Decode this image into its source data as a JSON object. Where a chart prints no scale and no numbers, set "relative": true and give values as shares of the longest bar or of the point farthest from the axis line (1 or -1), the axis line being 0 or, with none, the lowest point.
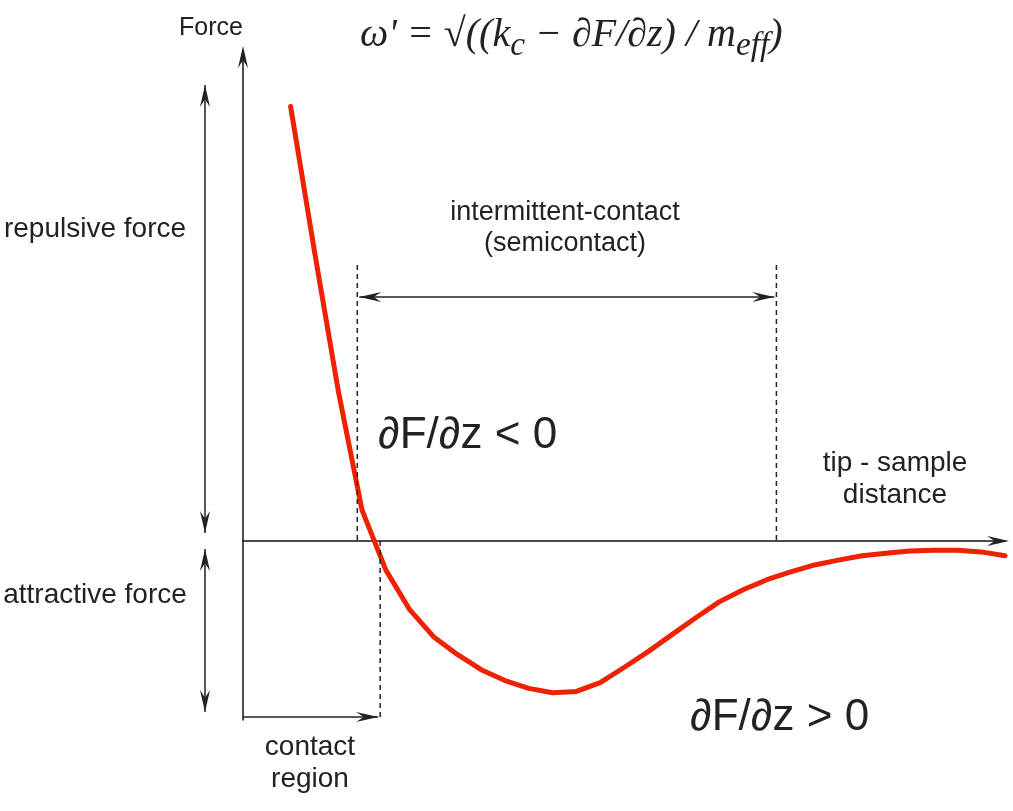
{
  "chart_data": {
    "type": "line",
    "relative": true,
    "xlabel": "tip - sample distance",
    "ylabel": "Force",
    "categories": [
      null,
      null,
      null,
      null,
      null,
      null,
      null,
      null,
      null,
      null,
      null,
      null,
      null,
      null,
      null,
      null,
      null,
      null,
      null,
      null,
      null,
      null,
      null,
      null,
      null,
      null,
      null,
      null,
      null,
      null,
      null,
      null,
      null
    ],
    "series": [
      {
        "color": "#ee2200",
        "values": [
          null,
          null,
          1.0,
          0.667,
          0.346,
          0.071,
          -0.067,
          -0.158,
          -0.22,
          -0.261,
          -0.296,
          -0.321,
          -0.339,
          -0.349,
          -0.346,
          -0.326,
          -0.291,
          -0.255,
          -0.216,
          -0.177,
          -0.14,
          -0.112,
          -0.089,
          -0.071,
          -0.055,
          -0.044,
          -0.034,
          -0.028,
          -0.023,
          -0.021,
          -0.021,
          -0.025,
          -0.034
        ]
      }
    ],
    "marker": "none",
    "line_style": "solid",
    "annotations": [
      "ω' = √((k$_{c}$ − ∂F/∂z) / m$_{eff}$)",
      "intermittent-contact (semicontact)",
      "repulsive force",
      "attractive force",
      "contact region",
      "∂F/∂z < 0",
      "∂F/∂z > 0"
    ]
  }
}
